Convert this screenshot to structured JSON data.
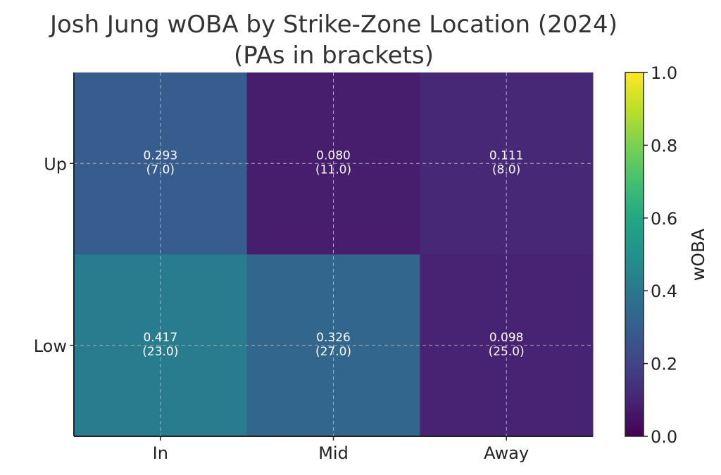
{
  "chart_data": {
    "type": "heatmap",
    "title_line1": "Josh Jung wOBA by Strike-Zone Location (2024)",
    "title_line2": "(PAs in brackets)",
    "x_categories": [
      "In",
      "Mid",
      "Away"
    ],
    "y_categories": [
      "Up",
      "Low"
    ],
    "values": [
      [
        0.293,
        0.08,
        0.111
      ],
      [
        0.417,
        0.326,
        0.098
      ]
    ],
    "value_labels": [
      [
        "0.293",
        "0.080",
        "0.111"
      ],
      [
        "0.417",
        "0.326",
        "0.098"
      ]
    ],
    "pa_labels": [
      [
        "(7.0)",
        "(11.0)",
        "(8.0)"
      ],
      [
        "(23.0)",
        "(27.0)",
        "(25.0)"
      ]
    ],
    "pa_counts": [
      [
        7.0,
        11.0,
        8.0
      ],
      [
        23.0,
        27.0,
        25.0
      ]
    ],
    "colormap": "viridis",
    "vmin": 0.0,
    "vmax": 1.0,
    "colorbar": {
      "label": "wOBA",
      "ticks": [
        "0.0",
        "0.2",
        "0.4",
        "0.6",
        "0.8",
        "1.0"
      ],
      "placement": "right"
    },
    "grid": true,
    "colors": {
      "text": "#222222",
      "title": "#333333",
      "cell_text": "#ffffff",
      "grid": "#b0b0b0"
    }
  }
}
